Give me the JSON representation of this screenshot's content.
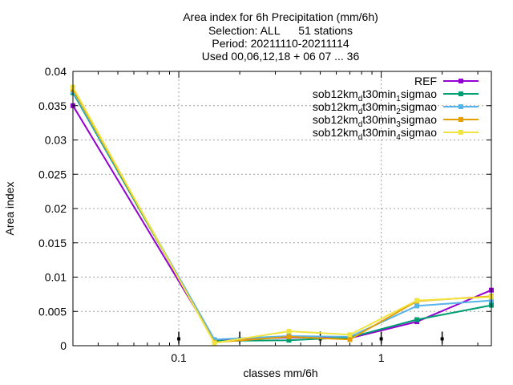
{
  "chart_data": {
    "type": "line",
    "title": [
      "Area index  for 6h Precipitation (mm/6h)",
      "Selection: ALL      51 stations",
      "Period: 20211110-20211114",
      "Used 00,06,12,18 + 06 07 ... 36"
    ],
    "xlabel": "classes mm/6h",
    "ylabel": "Area index",
    "x_scale": "log",
    "xlim": [
      0.03,
      3.5
    ],
    "ylim": [
      0,
      0.04
    ],
    "x_ticks": [
      0.1,
      1
    ],
    "x_tick_labels": [
      "0.1",
      "1"
    ],
    "y_ticks": [
      0,
      0.005,
      0.01,
      0.015,
      0.02,
      0.025,
      0.03,
      0.035,
      0.04
    ],
    "y_tick_labels": [
      "0",
      "0.005",
      "0.01",
      "0.015",
      "0.02",
      "0.025",
      "0.03",
      "0.035",
      "0.04"
    ],
    "grid": true,
    "legend_position": "top-right",
    "x": [
      0.03,
      0.15,
      0.35,
      0.7,
      1.5,
      3.5
    ],
    "series": [
      {
        "name": "REF",
        "name_parts": [
          "REF"
        ],
        "color": "#9400d3",
        "marker": "square",
        "values": [
          0.035,
          0.0008,
          0.0012,
          0.0011,
          0.0035,
          0.0081
        ]
      },
      {
        "name": "sob12km_dt30min_1sigmao",
        "name_parts": [
          "sob12km",
          "d",
          "t30min",
          "1",
          "sigmao"
        ],
        "color": "#009e73",
        "marker": "square",
        "values": [
          0.0369,
          0.0007,
          0.0008,
          0.0012,
          0.0038,
          0.0059
        ]
      },
      {
        "name": "sob12km_dt30min_2sigmao",
        "name_parts": [
          "sob12km",
          "d",
          "t30min",
          "2",
          "sigmao"
        ],
        "color": "#56b4e9",
        "marker": "square",
        "values": [
          0.0371,
          0.0009,
          0.0014,
          0.0013,
          0.0058,
          0.0066
        ]
      },
      {
        "name": "sob12km_dt30min_3sigmao",
        "name_parts": [
          "sob12km",
          "d",
          "t30min",
          "3",
          "sigmao"
        ],
        "color": "#e69f00",
        "marker": "square",
        "values": [
          0.0374,
          0.0005,
          0.0013,
          0.0009,
          0.0065,
          0.0072
        ]
      },
      {
        "name": "sob12km_dt30min_4sigmao",
        "name_parts": [
          "sob12km",
          "d",
          "t30min",
          "4",
          "sigmao"
        ],
        "color": "#f0e442",
        "marker": "square",
        "values": [
          0.0377,
          0.0004,
          0.0021,
          0.0016,
          0.0066,
          0.0071
        ]
      }
    ],
    "error_markers": {
      "color": "#000000",
      "x": [
        0.1,
        0.2,
        0.5,
        1.0,
        2.0
      ],
      "y": [
        0.001,
        0.001,
        0.001,
        0.001,
        0.001
      ]
    }
  }
}
